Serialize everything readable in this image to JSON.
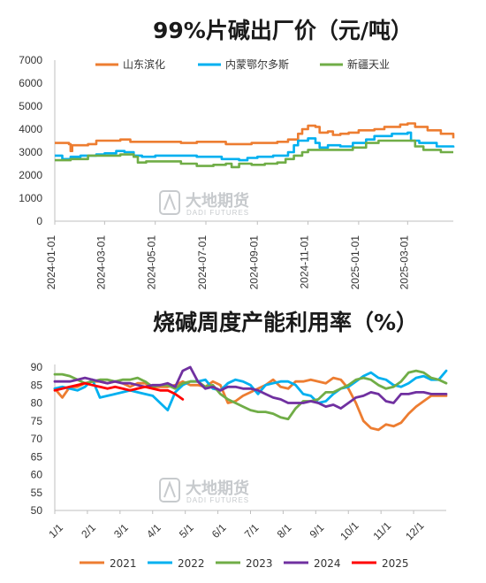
{
  "watermark": {
    "name_cn": "大地期货",
    "name_en": "DADI FUTURES"
  },
  "chart_data": [
    {
      "type": "line",
      "title": "99%片碱出厂价（元/吨）",
      "ylim": [
        0,
        7000
      ],
      "yticks": [
        0,
        1000,
        2000,
        3000,
        4000,
        5000,
        6000,
        7000
      ],
      "xticks": [
        "2024-01-01",
        "2024-03-01",
        "2024-05-01",
        "2024-07-01",
        "2024-09-01",
        "2024-11-01",
        "2025-01-01",
        "2025-03-01"
      ],
      "xrange": [
        "2024-01-01",
        "2025-04-25"
      ],
      "grid": false,
      "legend_position": "top",
      "series": [
        {
          "name": "山东滨化",
          "color": "#ED7D31",
          "points": [
            [
              "2024-01-01",
              3400
            ],
            [
              "2024-01-18",
              3350
            ],
            [
              "2024-01-20",
              3050
            ],
            [
              "2024-01-22",
              3300
            ],
            [
              "2024-02-10",
              3350
            ],
            [
              "2024-02-20",
              3500
            ],
            [
              "2024-03-20",
              3550
            ],
            [
              "2024-04-01",
              3450
            ],
            [
              "2024-04-20",
              3450
            ],
            [
              "2024-05-20",
              3450
            ],
            [
              "2024-06-01",
              3400
            ],
            [
              "2024-06-20",
              3450
            ],
            [
              "2024-07-10",
              3450
            ],
            [
              "2024-07-25",
              3350
            ],
            [
              "2024-08-25",
              3400
            ],
            [
              "2024-09-10",
              3400
            ],
            [
              "2024-09-25",
              3450
            ],
            [
              "2024-10-08",
              3550
            ],
            [
              "2024-10-20",
              3800
            ],
            [
              "2024-10-25",
              4000
            ],
            [
              "2024-11-01",
              4150
            ],
            [
              "2024-11-10",
              4100
            ],
            [
              "2024-11-15",
              3850
            ],
            [
              "2024-11-25",
              3900
            ],
            [
              "2024-12-01",
              3750
            ],
            [
              "2024-12-10",
              3800
            ],
            [
              "2024-12-20",
              3850
            ],
            [
              "2025-01-01",
              3950
            ],
            [
              "2025-01-20",
              4000
            ],
            [
              "2025-02-01",
              4100
            ],
            [
              "2025-02-20",
              4200
            ],
            [
              "2025-03-01",
              4250
            ],
            [
              "2025-03-10",
              4100
            ],
            [
              "2025-03-25",
              3950
            ],
            [
              "2025-04-10",
              3800
            ],
            [
              "2025-04-25",
              3600
            ]
          ]
        },
        {
          "name": "内蒙鄂尔多斯",
          "color": "#00B0F0",
          "points": [
            [
              "2024-01-01",
              2850
            ],
            [
              "2024-01-10",
              2700
            ],
            [
              "2024-01-20",
              2800
            ],
            [
              "2024-02-01",
              2850
            ],
            [
              "2024-02-20",
              2900
            ],
            [
              "2024-03-01",
              2950
            ],
            [
              "2024-03-15",
              3050
            ],
            [
              "2024-03-25",
              3000
            ],
            [
              "2024-04-05",
              2850
            ],
            [
              "2024-04-15",
              2800
            ],
            [
              "2024-05-01",
              2850
            ],
            [
              "2024-06-01",
              2850
            ],
            [
              "2024-06-20",
              2800
            ],
            [
              "2024-07-10",
              2800
            ],
            [
              "2024-07-20",
              2700
            ],
            [
              "2024-08-10",
              2650
            ],
            [
              "2024-08-20",
              2750
            ],
            [
              "2024-09-01",
              2800
            ],
            [
              "2024-09-20",
              2850
            ],
            [
              "2024-10-08",
              3000
            ],
            [
              "2024-10-15",
              3300
            ],
            [
              "2024-10-20",
              3500
            ],
            [
              "2024-11-01",
              3600
            ],
            [
              "2024-11-10",
              3400
            ],
            [
              "2024-11-15",
              3200
            ],
            [
              "2024-11-25",
              3300
            ],
            [
              "2024-12-10",
              3250
            ],
            [
              "2024-12-25",
              3400
            ],
            [
              "2025-01-10",
              3550
            ],
            [
              "2025-01-20",
              3700
            ],
            [
              "2025-02-10",
              3800
            ],
            [
              "2025-03-01",
              3850
            ],
            [
              "2025-03-05",
              3500
            ],
            [
              "2025-03-15",
              3400
            ],
            [
              "2025-04-05",
              3250
            ],
            [
              "2025-04-25",
              3200
            ]
          ]
        },
        {
          "name": "新疆天业",
          "color": "#70AD47",
          "points": [
            [
              "2024-01-01",
              2650
            ],
            [
              "2024-01-20",
              2700
            ],
            [
              "2024-02-10",
              2850
            ],
            [
              "2024-03-01",
              2850
            ],
            [
              "2024-03-20",
              2900
            ],
            [
              "2024-04-05",
              2800
            ],
            [
              "2024-04-10",
              2550
            ],
            [
              "2024-04-20",
              2600
            ],
            [
              "2024-05-20",
              2600
            ],
            [
              "2024-06-01",
              2500
            ],
            [
              "2024-06-20",
              2400
            ],
            [
              "2024-07-10",
              2450
            ],
            [
              "2024-07-25",
              2500
            ],
            [
              "2024-08-01",
              2350
            ],
            [
              "2024-08-10",
              2500
            ],
            [
              "2024-08-25",
              2450
            ],
            [
              "2024-09-10",
              2500
            ],
            [
              "2024-09-25",
              2550
            ],
            [
              "2024-10-05",
              2700
            ],
            [
              "2024-10-15",
              2850
            ],
            [
              "2024-10-25",
              3000
            ],
            [
              "2024-11-01",
              3100
            ],
            [
              "2024-11-20",
              3100
            ],
            [
              "2024-12-10",
              3100
            ],
            [
              "2024-12-25",
              3200
            ],
            [
              "2025-01-10",
              3400
            ],
            [
              "2025-01-25",
              3500
            ],
            [
              "2025-02-15",
              3500
            ],
            [
              "2025-03-01",
              3500
            ],
            [
              "2025-03-10",
              3250
            ],
            [
              "2025-03-20",
              3100
            ],
            [
              "2025-04-10",
              3000
            ],
            [
              "2025-04-25",
              3000
            ]
          ]
        }
      ]
    },
    {
      "type": "line",
      "title": "烧碱周度产能利用率（%）",
      "ylim": [
        50,
        90
      ],
      "yticks": [
        50,
        55,
        60,
        65,
        70,
        75,
        80,
        85,
        90
      ],
      "categories": [
        "1/1",
        "2/1",
        "3/1",
        "4/1",
        "5/1",
        "6/1",
        "7/1",
        "8/1",
        "9/1",
        "10/1",
        "11/1",
        "12/1"
      ],
      "x_unit": "week_of_year",
      "xlim": [
        0,
        52
      ],
      "grid": false,
      "legend_position": "bottom",
      "series": [
        {
          "name": "2021",
          "color": "#ED7D31",
          "x": [
            0,
            1,
            2,
            3,
            4,
            5,
            6,
            7,
            8,
            9,
            10,
            11,
            12,
            13,
            14,
            15,
            16,
            17,
            18,
            19,
            20,
            21,
            22,
            23,
            24,
            25,
            26,
            27,
            28,
            29,
            30,
            31,
            32,
            33,
            34,
            35,
            36,
            37,
            38,
            39,
            40,
            41,
            42,
            43,
            44,
            45,
            46,
            47,
            48,
            49,
            50,
            51,
            52
          ],
          "values": [
            84,
            81.5,
            84.5,
            84.5,
            85.5,
            86,
            86,
            85.5,
            86,
            85.5,
            84.5,
            85.5,
            85.5,
            84.5,
            84.5,
            84.5,
            85,
            86,
            85,
            85,
            84.5,
            86,
            85,
            80,
            80.5,
            82,
            83,
            84,
            85,
            86.5,
            84.5,
            84,
            86,
            86,
            86.5,
            86,
            85.5,
            87,
            86.5,
            84,
            80,
            75,
            73,
            72.5,
            74,
            73.5,
            74.5,
            77,
            79,
            80.5,
            82,
            82,
            82
          ]
        },
        {
          "name": "2022",
          "color": "#00B0F0",
          "x": [
            0,
            1,
            2,
            3,
            4,
            5,
            6,
            7,
            8,
            9,
            10,
            11,
            12,
            13,
            14,
            15,
            16,
            17,
            18,
            19,
            20,
            21,
            22,
            23,
            24,
            25,
            26,
            27,
            28,
            29,
            30,
            31,
            32,
            33,
            34,
            35,
            36,
            37,
            38,
            39,
            40,
            41,
            42,
            43,
            44,
            45,
            46,
            47,
            48,
            49,
            50,
            51,
            52
          ],
          "values": [
            84,
            84.5,
            84,
            83.5,
            84.5,
            86.5,
            81.5,
            82,
            82.5,
            83,
            83.5,
            83,
            82.5,
            82,
            80,
            78,
            83,
            85,
            86,
            86,
            86.5,
            84,
            83.5,
            85.5,
            86.5,
            86,
            85,
            82.5,
            85,
            85.5,
            86,
            86,
            85,
            82.5,
            82,
            80,
            80.5,
            82.5,
            84,
            84.5,
            86,
            87.5,
            88.5,
            87,
            86.5,
            85,
            84.5,
            85.5,
            87,
            87.5,
            86.5,
            86.5,
            89
          ]
        },
        {
          "name": "2023",
          "color": "#70AD47",
          "x": [
            0,
            1,
            2,
            3,
            4,
            5,
            6,
            7,
            8,
            9,
            10,
            11,
            12,
            13,
            14,
            15,
            16,
            17,
            18,
            19,
            20,
            21,
            22,
            23,
            24,
            25,
            26,
            27,
            28,
            29,
            30,
            31,
            32,
            33,
            34,
            35,
            36,
            37,
            38,
            39,
            40,
            41,
            42,
            43,
            44,
            45,
            46,
            47,
            48,
            49,
            50,
            51,
            52
          ],
          "values": [
            88,
            88,
            87.5,
            86.5,
            85.5,
            86,
            86.5,
            86.5,
            86,
            86.5,
            86.5,
            87,
            86,
            84.5,
            85,
            85,
            84,
            85.5,
            86,
            86,
            84.5,
            85,
            82.5,
            81,
            80,
            79,
            78,
            77.5,
            77.5,
            77,
            76,
            75.5,
            78.5,
            80.5,
            80.5,
            81,
            83,
            83,
            84,
            85,
            86.5,
            87,
            86.5,
            85,
            84,
            84.5,
            86,
            88.5,
            89,
            88.5,
            87,
            86.5,
            85.5
          ]
        },
        {
          "name": "2024",
          "color": "#7030A0",
          "x": [
            0,
            1,
            2,
            3,
            4,
            5,
            6,
            7,
            8,
            9,
            10,
            11,
            12,
            13,
            14,
            15,
            16,
            17,
            18,
            19,
            20,
            21,
            22,
            23,
            24,
            25,
            26,
            27,
            28,
            29,
            30,
            31,
            32,
            33,
            34,
            35,
            36,
            37,
            38,
            39,
            40,
            41,
            42,
            43,
            44,
            45,
            46,
            47,
            48,
            49,
            50,
            51,
            52
          ],
          "values": [
            86,
            86,
            86,
            86.5,
            87,
            86.5,
            86,
            85.5,
            86,
            85.5,
            85.5,
            85,
            84.5,
            85,
            85,
            85.5,
            84.5,
            89,
            90,
            86,
            84,
            84.5,
            83.5,
            84.5,
            84.5,
            84,
            84,
            83.5,
            82.5,
            81.5,
            81,
            80,
            80,
            80,
            80.5,
            80,
            79,
            79.5,
            78.5,
            80,
            81.5,
            82,
            83,
            82.5,
            80.5,
            80,
            82.5,
            82.5,
            83,
            83,
            82.5,
            82.5,
            82.5
          ]
        },
        {
          "name": "2025",
          "color": "#FF0000",
          "x": [
            0,
            1,
            2,
            3,
            4,
            5,
            6,
            7,
            8,
            9,
            10,
            11,
            12,
            13,
            14,
            15,
            16,
            17
          ],
          "values": [
            83.5,
            84,
            84.5,
            85,
            85.5,
            85,
            84.5,
            84,
            84.5,
            84,
            83.5,
            84,
            84.5,
            84,
            83.5,
            83.5,
            82.5,
            81
          ]
        }
      ]
    }
  ]
}
